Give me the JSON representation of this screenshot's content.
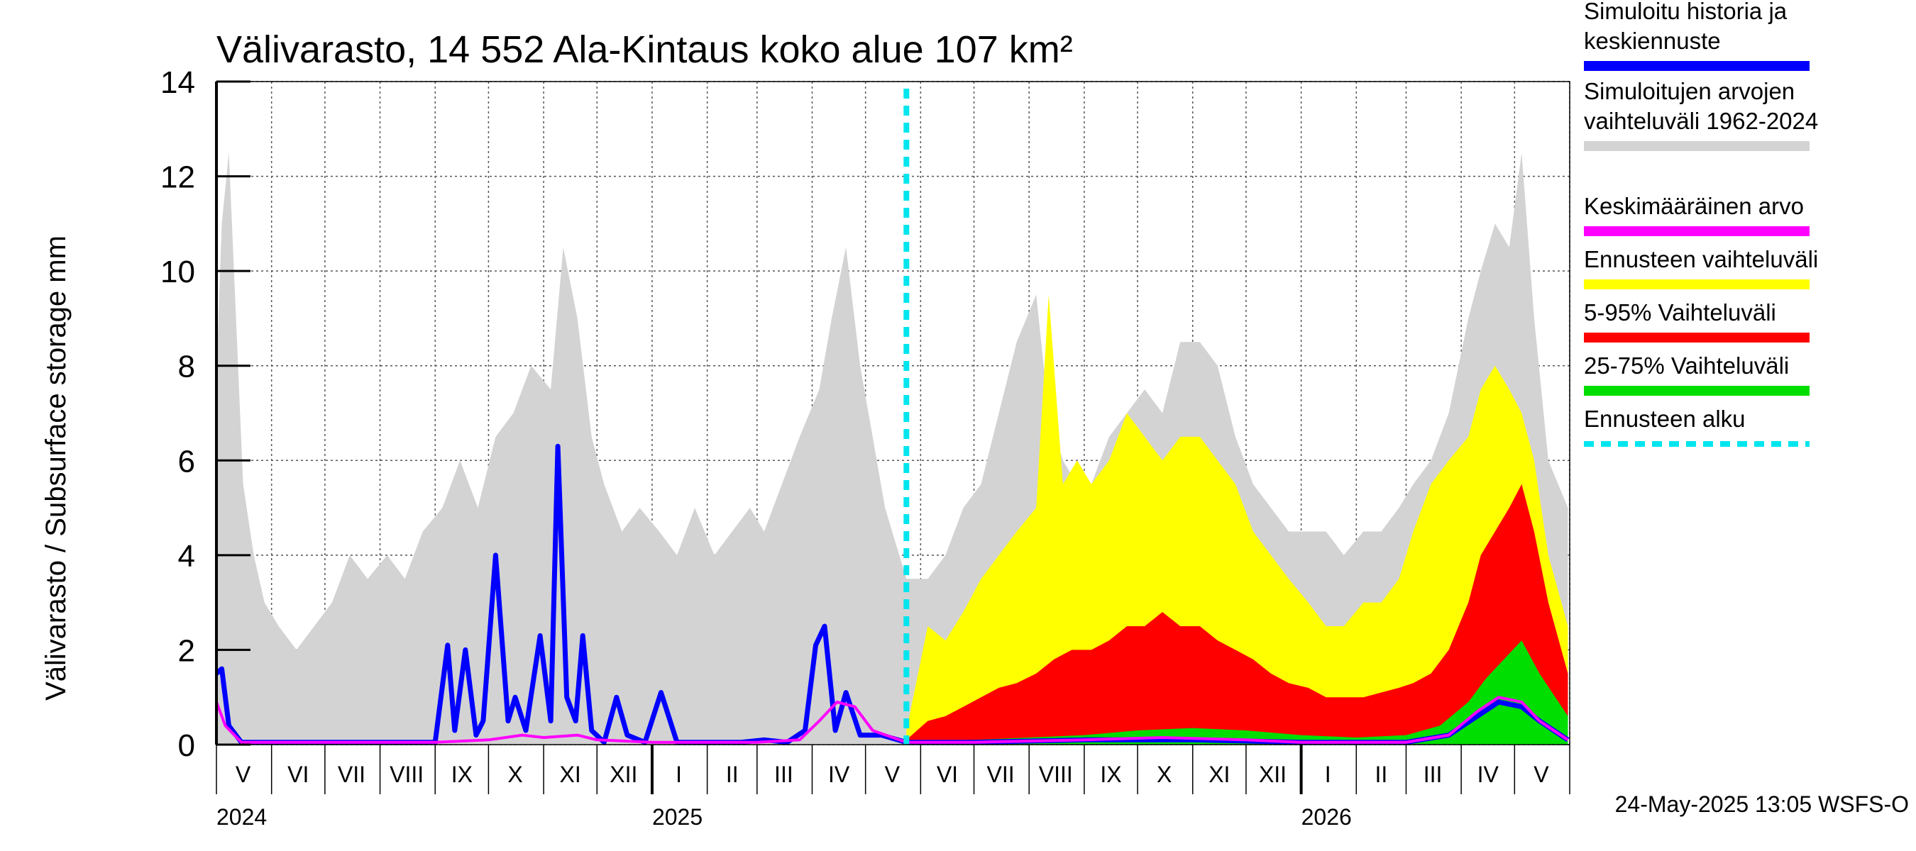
{
  "chart_data": {
    "type": "area",
    "title": "Välivarasto, 14 552 Ala-Kintaus koko alue 107 km²",
    "ylabel": "Välivarasto / Subsurface storage  mm",
    "ylim": [
      0,
      14
    ],
    "yticks": [
      "0",
      "2",
      "4",
      "6",
      "8",
      "10",
      "12",
      "14"
    ],
    "x_range": [
      "2024-05-01",
      "2026-06-01"
    ],
    "grid": true,
    "legend_position": "right",
    "forecast_start": "2025-05-24",
    "month_labels": [
      {
        "label": "V",
        "date": "2024-05-16"
      },
      {
        "label": "VI",
        "date": "2024-06-16"
      },
      {
        "label": "VII",
        "date": "2024-07-16"
      },
      {
        "label": "VIII",
        "date": "2024-08-16"
      },
      {
        "label": "IX",
        "date": "2024-09-16"
      },
      {
        "label": "X",
        "date": "2024-10-16"
      },
      {
        "label": "XI",
        "date": "2024-11-16"
      },
      {
        "label": "XII",
        "date": "2024-12-16"
      },
      {
        "label": "I",
        "date": "2025-01-16"
      },
      {
        "label": "II",
        "date": "2025-02-15"
      },
      {
        "label": "III",
        "date": "2025-03-16"
      },
      {
        "label": "IV",
        "date": "2025-04-16"
      },
      {
        "label": "V",
        "date": "2025-05-16"
      },
      {
        "label": "VI",
        "date": "2025-06-16"
      },
      {
        "label": "VII",
        "date": "2025-07-16"
      },
      {
        "label": "VIII",
        "date": "2025-08-16"
      },
      {
        "label": "IX",
        "date": "2025-09-16"
      },
      {
        "label": "X",
        "date": "2025-10-16"
      },
      {
        "label": "XI",
        "date": "2025-11-16"
      },
      {
        "label": "XII",
        "date": "2025-12-16"
      },
      {
        "label": "I",
        "date": "2026-01-16"
      },
      {
        "label": "II",
        "date": "2026-02-15"
      },
      {
        "label": "III",
        "date": "2026-03-16"
      },
      {
        "label": "IV",
        "date": "2026-04-16"
      },
      {
        "label": "V",
        "date": "2026-05-16"
      }
    ],
    "year_labels": [
      {
        "label": "2024",
        "date": "2024-05-01"
      },
      {
        "label": "2025",
        "date": "2025-01-01"
      },
      {
        "label": "2026",
        "date": "2026-01-01"
      }
    ],
    "legend": [
      {
        "label": "Simuloitu historia ja keskiennuste",
        "lines": [
          "Simuloitu historia ja",
          "keskiennuste"
        ],
        "color": "#0000ff",
        "style": "solid"
      },
      {
        "label": "Simuloitujen arvojen vaihteluväli 1962-2024",
        "lines": [
          "Simuloitujen arvojen",
          "vaihteluväli 1962-2024"
        ],
        "color": "#d3d3d3",
        "style": "solid"
      },
      {
        "label": "Keskimääräinen arvo",
        "lines": [
          "Keskimääräinen arvo"
        ],
        "color": "#ff00ff",
        "style": "solid"
      },
      {
        "label": "Ennusteen vaihteluväli",
        "lines": [
          "Ennusteen vaihteluväli"
        ],
        "color": "#ffff00",
        "style": "solid"
      },
      {
        "label": "5-95% Vaihteluväli",
        "lines": [
          "5-95% Vaihteluväli"
        ],
        "color": "#ff0000",
        "style": "solid"
      },
      {
        "label": "25-75% Vaihteluväli",
        "lines": [
          "25-75% Vaihteluväli"
        ],
        "color": "#00dd00",
        "style": "solid"
      },
      {
        "label": "Ennusteen alku",
        "lines": [
          "Ennusteen alku"
        ],
        "color": "#00e5ee",
        "style": "dashed"
      }
    ],
    "series": [
      {
        "name": "Simulated history range 1962-2024 (max)",
        "color": "#d3d3d3",
        "x": [
          "2024-05-01",
          "2024-05-04",
          "2024-05-08",
          "2024-05-12",
          "2024-05-16",
          "2024-05-22",
          "2024-05-28",
          "2024-06-05",
          "2024-06-15",
          "2024-06-25",
          "2024-07-05",
          "2024-07-15",
          "2024-07-25",
          "2024-08-05",
          "2024-08-15",
          "2024-08-25",
          "2024-09-05",
          "2024-09-15",
          "2024-09-25",
          "2024-10-05",
          "2024-10-15",
          "2024-10-25",
          "2024-11-05",
          "2024-11-12",
          "2024-11-20",
          "2024-11-28",
          "2024-12-05",
          "2024-12-15",
          "2024-12-25",
          "2025-01-05",
          "2025-01-15",
          "2025-01-25",
          "2025-02-05",
          "2025-02-15",
          "2025-02-25",
          "2025-03-05",
          "2025-03-15",
          "2025-03-25",
          "2025-04-05",
          "2025-04-12",
          "2025-04-20",
          "2025-04-28",
          "2025-05-05",
          "2025-05-12",
          "2025-05-20",
          "2025-05-24",
          "2025-06-05",
          "2025-06-15",
          "2025-06-25",
          "2025-07-05",
          "2025-07-15",
          "2025-07-25",
          "2025-08-05",
          "2025-08-12",
          "2025-08-20",
          "2025-08-28",
          "2025-09-05",
          "2025-09-15",
          "2025-09-25",
          "2025-10-05",
          "2025-10-15",
          "2025-10-25",
          "2025-11-05",
          "2025-11-15",
          "2025-11-25",
          "2025-12-05",
          "2025-12-15",
          "2025-12-25",
          "2026-01-05",
          "2026-01-15",
          "2026-01-25",
          "2026-02-05",
          "2026-02-15",
          "2026-02-25",
          "2026-03-05",
          "2026-03-15",
          "2026-03-25",
          "2026-04-05",
          "2026-04-12",
          "2026-04-20",
          "2026-04-28",
          "2026-05-05",
          "2026-05-12",
          "2026-05-20",
          "2026-05-31"
        ],
        "values": [
          7.8,
          11,
          12.5,
          9,
          5.5,
          4,
          3,
          2.5,
          2,
          2.5,
          3,
          4,
          3.5,
          4,
          3.5,
          4.5,
          5,
          6,
          5,
          6.5,
          7,
          8,
          7.5,
          10.5,
          9,
          6.5,
          5.5,
          4.5,
          5,
          4.5,
          4,
          5,
          4,
          4.5,
          5,
          4.5,
          5.5,
          6.5,
          7.5,
          9,
          10.5,
          8,
          6.5,
          5,
          4,
          3.5,
          3.5,
          4,
          5,
          5.5,
          7,
          8.5,
          9.5,
          7,
          6,
          5.5,
          5.5,
          6.5,
          7,
          7.5,
          7,
          8.5,
          8.5,
          8,
          6.5,
          5.5,
          5,
          4.5,
          4.5,
          4.5,
          4,
          4.5,
          4.5,
          5,
          5.5,
          6,
          7,
          9,
          10,
          11,
          10.5,
          12.5,
          9,
          6,
          5
        ]
      },
      {
        "name": "Forecast range (yellow, max)",
        "color": "#ffff00",
        "x": [
          "2025-05-24",
          "2025-06-05",
          "2025-06-15",
          "2025-06-25",
          "2025-07-05",
          "2025-07-15",
          "2025-07-25",
          "2025-08-05",
          "2025-08-12",
          "2025-08-20",
          "2025-08-28",
          "2025-09-05",
          "2025-09-15",
          "2025-09-25",
          "2025-10-05",
          "2025-10-15",
          "2025-10-25",
          "2025-11-05",
          "2025-11-15",
          "2025-11-25",
          "2025-12-05",
          "2025-12-15",
          "2025-12-25",
          "2026-01-05",
          "2026-01-15",
          "2026-01-25",
          "2026-02-05",
          "2026-02-15",
          "2026-02-25",
          "2026-03-05",
          "2026-03-15",
          "2026-03-25",
          "2026-04-05",
          "2026-04-12",
          "2026-04-20",
          "2026-04-28",
          "2026-05-05",
          "2026-05-12",
          "2026-05-20",
          "2026-05-31"
        ],
        "values": [
          0.3,
          2.5,
          2.2,
          2.8,
          3.5,
          4,
          4.5,
          5,
          9.5,
          5.5,
          6,
          5.5,
          6,
          7,
          6.5,
          6,
          6.5,
          6.5,
          6,
          5.5,
          4.5,
          4,
          3.5,
          3,
          2.5,
          2.5,
          3,
          3,
          3.5,
          4.5,
          5.5,
          6,
          6.5,
          7.5,
          8,
          7.5,
          7,
          6,
          4,
          2.5
        ]
      },
      {
        "name": "5-95% range (max)",
        "color": "#ff0000",
        "x": [
          "2025-05-24",
          "2025-06-05",
          "2025-06-15",
          "2025-06-25",
          "2025-07-05",
          "2025-07-15",
          "2025-07-25",
          "2025-08-05",
          "2025-08-15",
          "2025-08-25",
          "2025-09-05",
          "2025-09-15",
          "2025-09-25",
          "2025-10-05",
          "2025-10-15",
          "2025-10-25",
          "2025-11-05",
          "2025-11-15",
          "2025-11-25",
          "2025-12-05",
          "2025-12-15",
          "2025-12-25",
          "2026-01-05",
          "2026-01-15",
          "2026-01-25",
          "2026-02-05",
          "2026-02-15",
          "2026-02-25",
          "2026-03-05",
          "2026-03-15",
          "2026-03-25",
          "2026-04-05",
          "2026-04-12",
          "2026-04-20",
          "2026-04-28",
          "2026-05-05",
          "2026-05-12",
          "2026-05-20",
          "2026-05-31"
        ],
        "values": [
          0.1,
          0.5,
          0.6,
          0.8,
          1,
          1.2,
          1.3,
          1.5,
          1.8,
          2,
          2,
          2.2,
          2.5,
          2.5,
          2.8,
          2.5,
          2.5,
          2.2,
          2,
          1.8,
          1.5,
          1.3,
          1.2,
          1,
          1,
          1,
          1.1,
          1.2,
          1.3,
          1.5,
          2,
          3,
          4,
          4.5,
          5,
          5.5,
          4.5,
          3,
          1.5
        ]
      },
      {
        "name": "25-75% range (max)",
        "color": "#00dd00",
        "x": [
          "2025-05-24",
          "2025-07-01",
          "2025-08-01",
          "2025-09-01",
          "2025-10-01",
          "2025-11-01",
          "2025-12-01",
          "2026-01-01",
          "2026-02-01",
          "2026-03-01",
          "2026-03-20",
          "2026-04-05",
          "2026-04-15",
          "2026-04-25",
          "2026-05-05",
          "2026-05-15",
          "2026-05-31"
        ],
        "values": [
          0.05,
          0.1,
          0.15,
          0.2,
          0.3,
          0.35,
          0.3,
          0.2,
          0.15,
          0.2,
          0.4,
          0.9,
          1.4,
          1.8,
          2.2,
          1.5,
          0.6
        ]
      },
      {
        "name": "Simulated history / median forecast",
        "color": "#0000ff",
        "x": [
          "2024-05-01",
          "2024-05-04",
          "2024-05-08",
          "2024-05-15",
          "2024-06-01",
          "2024-07-01",
          "2024-08-01",
          "2024-09-01",
          "2024-09-08",
          "2024-09-12",
          "2024-09-18",
          "2024-09-24",
          "2024-09-28",
          "2024-10-05",
          "2024-10-12",
          "2024-10-16",
          "2024-10-22",
          "2024-10-30",
          "2024-11-05",
          "2024-11-09",
          "2024-11-14",
          "2024-11-19",
          "2024-11-23",
          "2024-11-28",
          "2024-12-05",
          "2024-12-12",
          "2024-12-18",
          "2024-12-28",
          "2025-01-06",
          "2025-01-15",
          "2025-01-25",
          "2025-02-05",
          "2025-02-20",
          "2025-03-05",
          "2025-03-18",
          "2025-03-28",
          "2025-04-03",
          "2025-04-08",
          "2025-04-14",
          "2025-04-20",
          "2025-04-28",
          "2025-05-10",
          "2025-05-24",
          "2025-07-01",
          "2025-09-01",
          "2025-11-01",
          "2026-01-01",
          "2026-03-01",
          "2026-03-25",
          "2026-04-10",
          "2026-04-22",
          "2026-05-05",
          "2026-05-15",
          "2026-05-31"
        ],
        "values": [
          1.5,
          1.6,
          0.4,
          0.05,
          0.05,
          0.05,
          0.05,
          0.05,
          2.1,
          0.3,
          2,
          0.2,
          0.5,
          4,
          0.5,
          1,
          0.3,
          2.3,
          0.5,
          6.3,
          1,
          0.5,
          2.3,
          0.3,
          0.05,
          1,
          0.2,
          0.05,
          1.1,
          0.05,
          0.05,
          0.05,
          0.05,
          0.1,
          0.05,
          0.3,
          2.1,
          2.5,
          0.3,
          1.1,
          0.2,
          0.2,
          0.05,
          0.05,
          0.1,
          0.1,
          0.05,
          0.05,
          0.2,
          0.6,
          0.9,
          0.8,
          0.5,
          0.1
        ]
      },
      {
        "name": "Mean value",
        "color": "#ff00ff",
        "x": [
          "2024-05-01",
          "2024-05-06",
          "2024-05-15",
          "2024-06-01",
          "2024-09-01",
          "2024-10-01",
          "2024-10-20",
          "2024-11-01",
          "2024-11-20",
          "2024-12-01",
          "2025-01-01",
          "2025-03-01",
          "2025-03-25",
          "2025-04-05",
          "2025-04-15",
          "2025-04-25",
          "2025-05-05",
          "2025-05-24",
          "2025-07-01",
          "2025-09-01",
          "2025-10-15",
          "2025-12-01",
          "2026-01-01",
          "2026-03-01",
          "2026-03-25",
          "2026-04-10",
          "2026-04-22",
          "2026-05-05",
          "2026-05-15",
          "2026-05-31"
        ],
        "values": [
          0.9,
          0.4,
          0.05,
          0.05,
          0.05,
          0.1,
          0.2,
          0.15,
          0.2,
          0.1,
          0.05,
          0.05,
          0.1,
          0.5,
          0.9,
          0.8,
          0.3,
          0.05,
          0.05,
          0.1,
          0.15,
          0.1,
          0.05,
          0.05,
          0.2,
          0.7,
          1,
          0.9,
          0.5,
          0.1
        ]
      }
    ],
    "annotations": [
      {
        "text": "24-May-2025 13:05 WSFS-O"
      }
    ]
  }
}
